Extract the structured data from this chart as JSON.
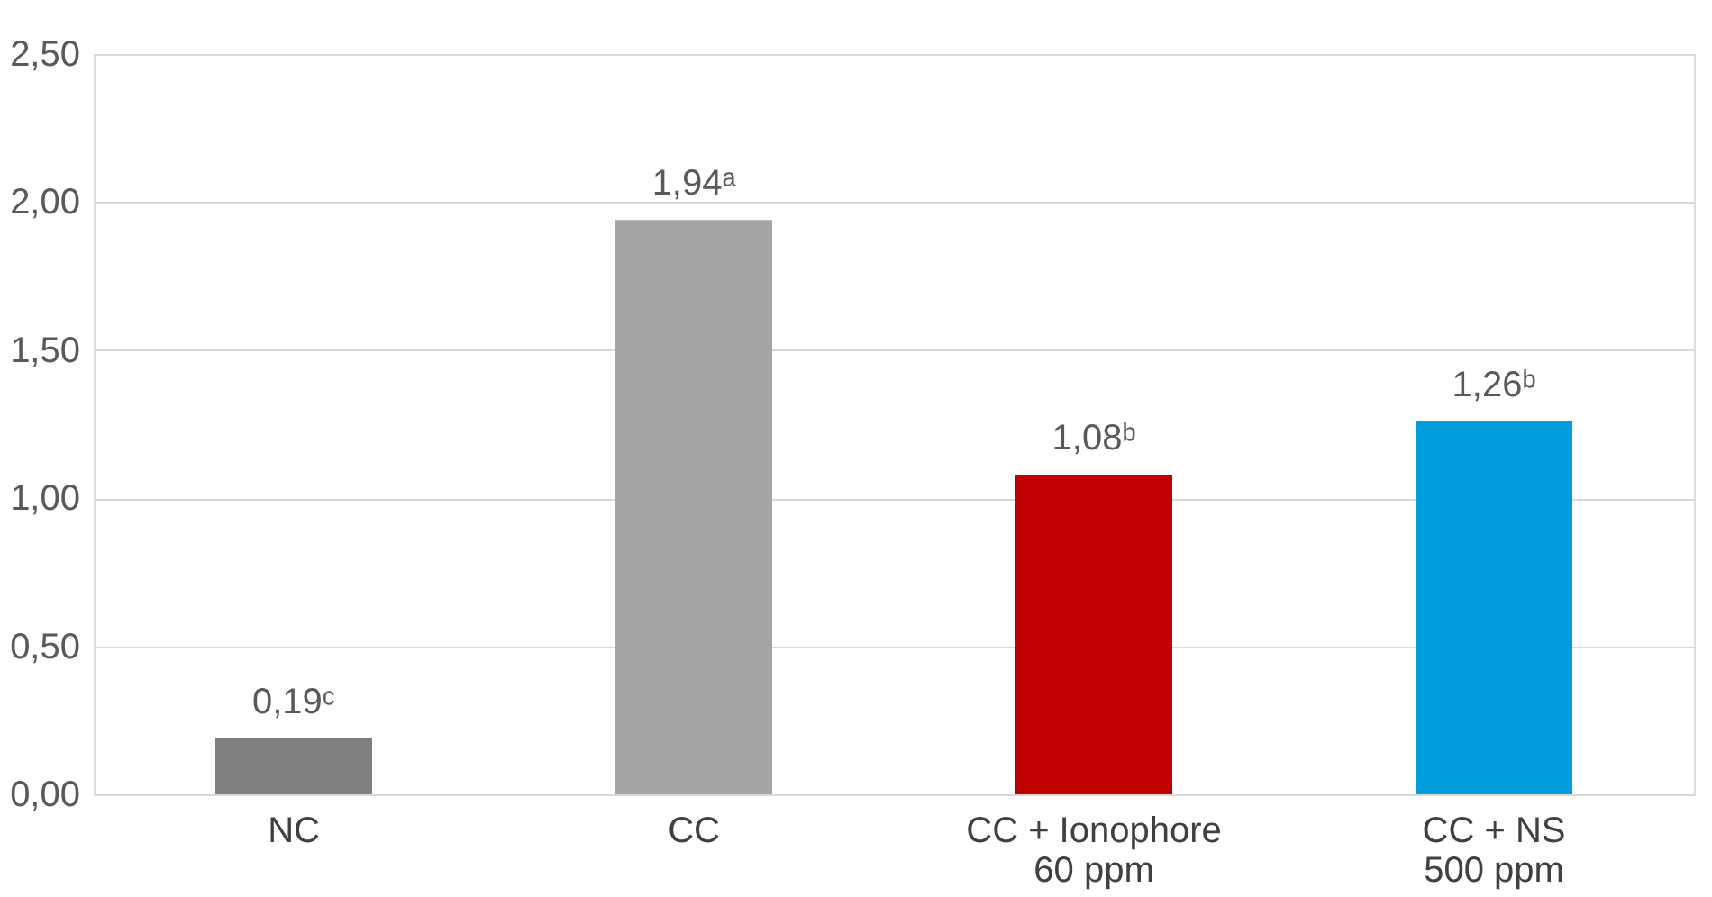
{
  "chart_data": {
    "type": "bar",
    "categories": [
      "NC",
      "CC",
      "CC + Ionophore\n60 ppm",
      "CC + NS\n500 ppm"
    ],
    "values": [
      0.19,
      1.94,
      1.08,
      1.26
    ],
    "colors": [
      "#7f7f7f",
      "#a5a5a5",
      "#c00000",
      "#009ddf"
    ],
    "value_labels": [
      "0,19ᶜ",
      "1,94ᵃ",
      "1,08ᵇ",
      "1,26ᵇ"
    ],
    "ylim": [
      0,
      2.5
    ],
    "yticks": [
      {
        "value": 0,
        "label": "0,00"
      },
      {
        "value": 0.5,
        "label": "0,50"
      },
      {
        "value": 1,
        "label": "1,00"
      },
      {
        "value": 1.5,
        "label": "1,50"
      },
      {
        "value": 2,
        "label": "2,00"
      },
      {
        "value": 2.5,
        "label": "2,50"
      }
    ],
    "grid": "y"
  }
}
